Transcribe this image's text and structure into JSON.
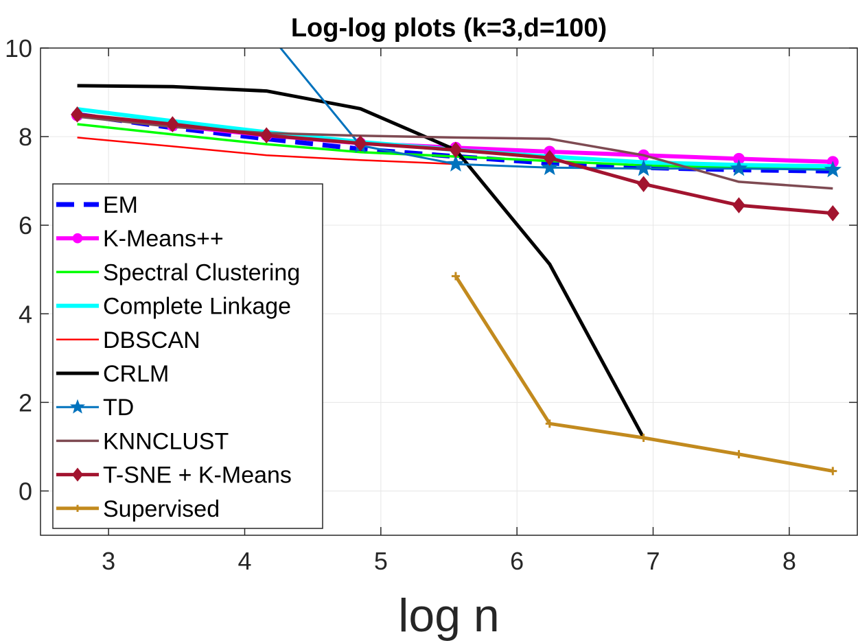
{
  "chart_data": {
    "type": "line",
    "title": "Log-log plots (k=3,d=100)",
    "xlabel": "log n",
    "ylabel": "",
    "xlim": [
      2.5,
      8.5
    ],
    "ylim": [
      -1,
      10
    ],
    "xticks": [
      3,
      4,
      5,
      6,
      7,
      8
    ],
    "yticks": [
      0,
      2,
      4,
      6,
      8,
      10
    ],
    "grid": true,
    "legend_position": "left",
    "series": [
      {
        "name": "EM",
        "color": "#0000FF",
        "style": "dashed",
        "marker": "none",
        "x": [
          2.77,
          3.47,
          4.16,
          4.85,
          5.55,
          6.24,
          6.93,
          7.63,
          8.32
        ],
        "y": [
          8.5,
          8.2,
          7.95,
          7.72,
          7.55,
          7.4,
          7.3,
          7.25,
          7.22
        ]
      },
      {
        "name": "K-Means++",
        "color": "#FF00FF",
        "style": "solid",
        "marker": "circle",
        "x": [
          2.77,
          3.47,
          4.16,
          4.85,
          5.55,
          6.24,
          6.93,
          7.63,
          8.32
        ],
        "y": [
          8.48,
          8.25,
          8.03,
          7.85,
          7.75,
          7.66,
          7.58,
          7.5,
          7.43
        ]
      },
      {
        "name": "Spectral Clustering",
        "color": "#00FF00",
        "style": "solid",
        "marker": "none",
        "x": [
          2.77,
          3.47,
          4.16,
          4.85,
          5.55,
          6.24,
          6.93,
          7.63,
          8.32
        ],
        "y": [
          8.28,
          8.05,
          7.83,
          7.65,
          7.55,
          7.45,
          7.35,
          7.3,
          7.28
        ]
      },
      {
        "name": "Complete Linkage",
        "color": "#00FFFF",
        "style": "solid",
        "marker": "none",
        "x": [
          2.77,
          3.47,
          4.16,
          4.85,
          5.55,
          6.24,
          6.93,
          7.63,
          8.32
        ],
        "y": [
          8.62,
          8.35,
          8.1,
          7.88,
          7.7,
          7.55,
          7.42,
          7.36,
          7.33
        ]
      },
      {
        "name": "DBSCAN",
        "color": "#FF0000",
        "style": "solid",
        "marker": "none",
        "x": [
          2.77,
          3.47,
          4.16,
          4.85,
          5.55
        ],
        "y": [
          7.98,
          7.78,
          7.58,
          7.47,
          7.38
        ]
      },
      {
        "name": "CRLM",
        "color": "#000000",
        "style": "solid",
        "marker": "none",
        "x": [
          2.77,
          3.47,
          4.16,
          4.85,
          5.55,
          6.24,
          6.93
        ],
        "y": [
          9.15,
          9.13,
          9.03,
          8.63,
          7.7,
          5.12,
          1.2
        ]
      },
      {
        "name": "TD",
        "color": "#0072BD",
        "style": "solid",
        "marker": "star",
        "x": [
          4.25,
          4.85,
          5.55,
          6.24,
          6.93,
          7.63,
          8.32
        ],
        "y": [
          10.05,
          7.8,
          7.38,
          7.3,
          7.28,
          7.28,
          7.25
        ]
      },
      {
        "name": "KNNCLUST",
        "color": "#7E4A52",
        "style": "solid",
        "marker": "none",
        "x": [
          2.77,
          3.47,
          4.16,
          4.85,
          5.55,
          6.24,
          6.93,
          7.63,
          8.32
        ],
        "y": [
          8.45,
          8.22,
          8.08,
          8.02,
          7.98,
          7.95,
          7.58,
          6.98,
          6.83
        ]
      },
      {
        "name": "T-SNE + K-Means",
        "color": "#A2142F",
        "style": "solid",
        "marker": "diamond",
        "x": [
          2.77,
          3.47,
          4.16,
          4.85,
          5.55,
          6.24,
          6.93,
          7.63,
          8.32
        ],
        "y": [
          8.5,
          8.28,
          8.03,
          7.85,
          7.7,
          7.52,
          6.93,
          6.45,
          6.27
        ]
      },
      {
        "name": "Supervised",
        "color": "#C28A1E",
        "style": "solid",
        "marker": "plus",
        "x": [
          5.55,
          6.24,
          6.93,
          7.63,
          8.32
        ],
        "y": [
          4.85,
          1.52,
          1.2,
          0.83,
          0.45
        ]
      }
    ]
  }
}
